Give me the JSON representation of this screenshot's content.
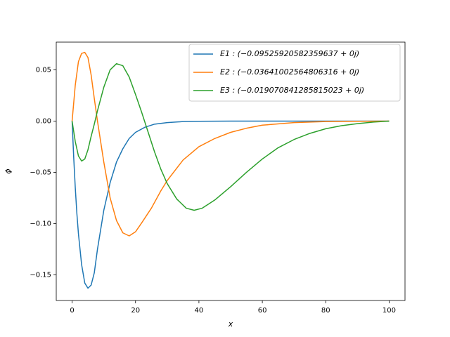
{
  "chart_data": {
    "type": "line",
    "xlabel": "x",
    "ylabel": "ϕ",
    "xlim": [
      -5,
      105
    ],
    "ylim": [
      -0.175,
      0.077
    ],
    "xticks": [
      0,
      20,
      40,
      60,
      80,
      100
    ],
    "yticks": [
      {
        "value": 0.05,
        "label": "0.05"
      },
      {
        "value": 0,
        "label": "0.00"
      },
      {
        "value": -0.05,
        "label": "−0.05"
      },
      {
        "value": -0.1,
        "label": "−0.10"
      },
      {
        "value": -0.15,
        "label": "−0.15"
      }
    ],
    "legend": "upper right",
    "series": [
      {
        "name": "E1 : (−0.09525920582359637 + 0j)",
        "color": "#1f77b4",
        "x": [
          0,
          0.5,
          1,
          1.5,
          2,
          3,
          4,
          5,
          6,
          7,
          8,
          10,
          12,
          14,
          16,
          18,
          20,
          23,
          26,
          30,
          35,
          40,
          50,
          100
        ],
        "values": [
          0,
          -0.035,
          -0.065,
          -0.09,
          -0.11,
          -0.14,
          -0.158,
          -0.163,
          -0.16,
          -0.148,
          -0.125,
          -0.087,
          -0.06,
          -0.04,
          -0.027,
          -0.017,
          -0.011,
          -0.006,
          -0.003,
          -0.0015,
          -0.0005,
          -0.0002,
          0,
          0
        ]
      },
      {
        "name": "E2 : (−0.03641002564806316 + 0j)",
        "color": "#ff7f0e",
        "x": [
          0,
          1,
          2,
          3,
          4,
          5,
          6,
          7,
          8,
          9,
          10,
          12,
          14,
          16,
          18,
          20,
          22,
          25,
          28,
          30,
          35,
          40,
          45,
          50,
          55,
          60,
          70,
          80,
          90,
          100
        ],
        "values": [
          0,
          0.035,
          0.058,
          0.066,
          0.067,
          0.062,
          0.045,
          0.022,
          0,
          -0.02,
          -0.04,
          -0.075,
          -0.097,
          -0.109,
          -0.112,
          -0.108,
          -0.099,
          -0.085,
          -0.068,
          -0.058,
          -0.038,
          -0.025,
          -0.017,
          -0.011,
          -0.007,
          -0.004,
          -0.0015,
          -0.0005,
          -0.0002,
          0
        ]
      },
      {
        "name": "E3 : (−0.019070841285815023 + 0j)",
        "color": "#2ca02c",
        "x": [
          0,
          1,
          2,
          3,
          4,
          5,
          6,
          7,
          8,
          10,
          12,
          14,
          16,
          18,
          20,
          22,
          24,
          26,
          28,
          30,
          33,
          36,
          38.5,
          41,
          45,
          50,
          55,
          60,
          65,
          70,
          75,
          80,
          85,
          90,
          95,
          100
        ],
        "values": [
          0,
          -0.02,
          -0.034,
          -0.039,
          -0.037,
          -0.028,
          -0.015,
          -0.003,
          0.01,
          0.033,
          0.05,
          0.056,
          0.054,
          0.043,
          0.026,
          0.008,
          -0.011,
          -0.03,
          -0.047,
          -0.061,
          -0.076,
          -0.085,
          -0.087,
          -0.085,
          -0.077,
          -0.064,
          -0.05,
          -0.037,
          -0.026,
          -0.018,
          -0.012,
          -0.0075,
          -0.0045,
          -0.0025,
          -0.001,
          0
        ]
      }
    ]
  }
}
